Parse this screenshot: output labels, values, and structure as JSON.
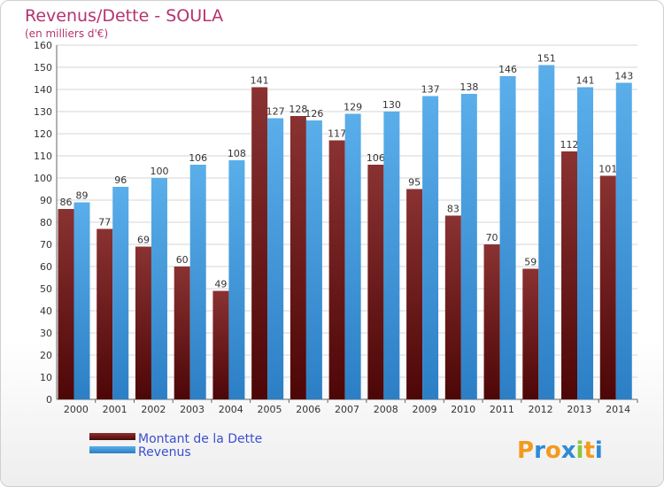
{
  "chart_data": {
    "type": "bar",
    "title": "Revenus/Dette - SOULA",
    "subtitle": "(en milliers d'€)",
    "categories": [
      "2000",
      "2001",
      "2002",
      "2003",
      "2004",
      "2005",
      "2006",
      "2007",
      "2008",
      "2009",
      "2010",
      "2011",
      "2012",
      "2013",
      "2014"
    ],
    "series": [
      {
        "name": "Montant de la Dette",
        "color": "#7a2424",
        "values": [
          86,
          77,
          69,
          60,
          49,
          141,
          128,
          117,
          106,
          95,
          83,
          70,
          59,
          112,
          101
        ]
      },
      {
        "name": "Revenus",
        "color": "#4aa3e4",
        "values": [
          89,
          96,
          100,
          106,
          108,
          127,
          126,
          129,
          130,
          137,
          138,
          146,
          151,
          141,
          143
        ]
      }
    ],
    "ylim": [
      0,
      160
    ],
    "ytick_step": 10,
    "grid": true,
    "legend_position": "bottom-left"
  },
  "brand": {
    "letters": [
      "P",
      "r",
      "o",
      "x",
      "i",
      "t",
      "i"
    ],
    "colors": [
      "#f39a1e",
      "#2e8bd6",
      "#f39a1e",
      "#2e8bd6",
      "#8cc63f",
      "#f39a1e",
      "#2e8bd6"
    ]
  }
}
